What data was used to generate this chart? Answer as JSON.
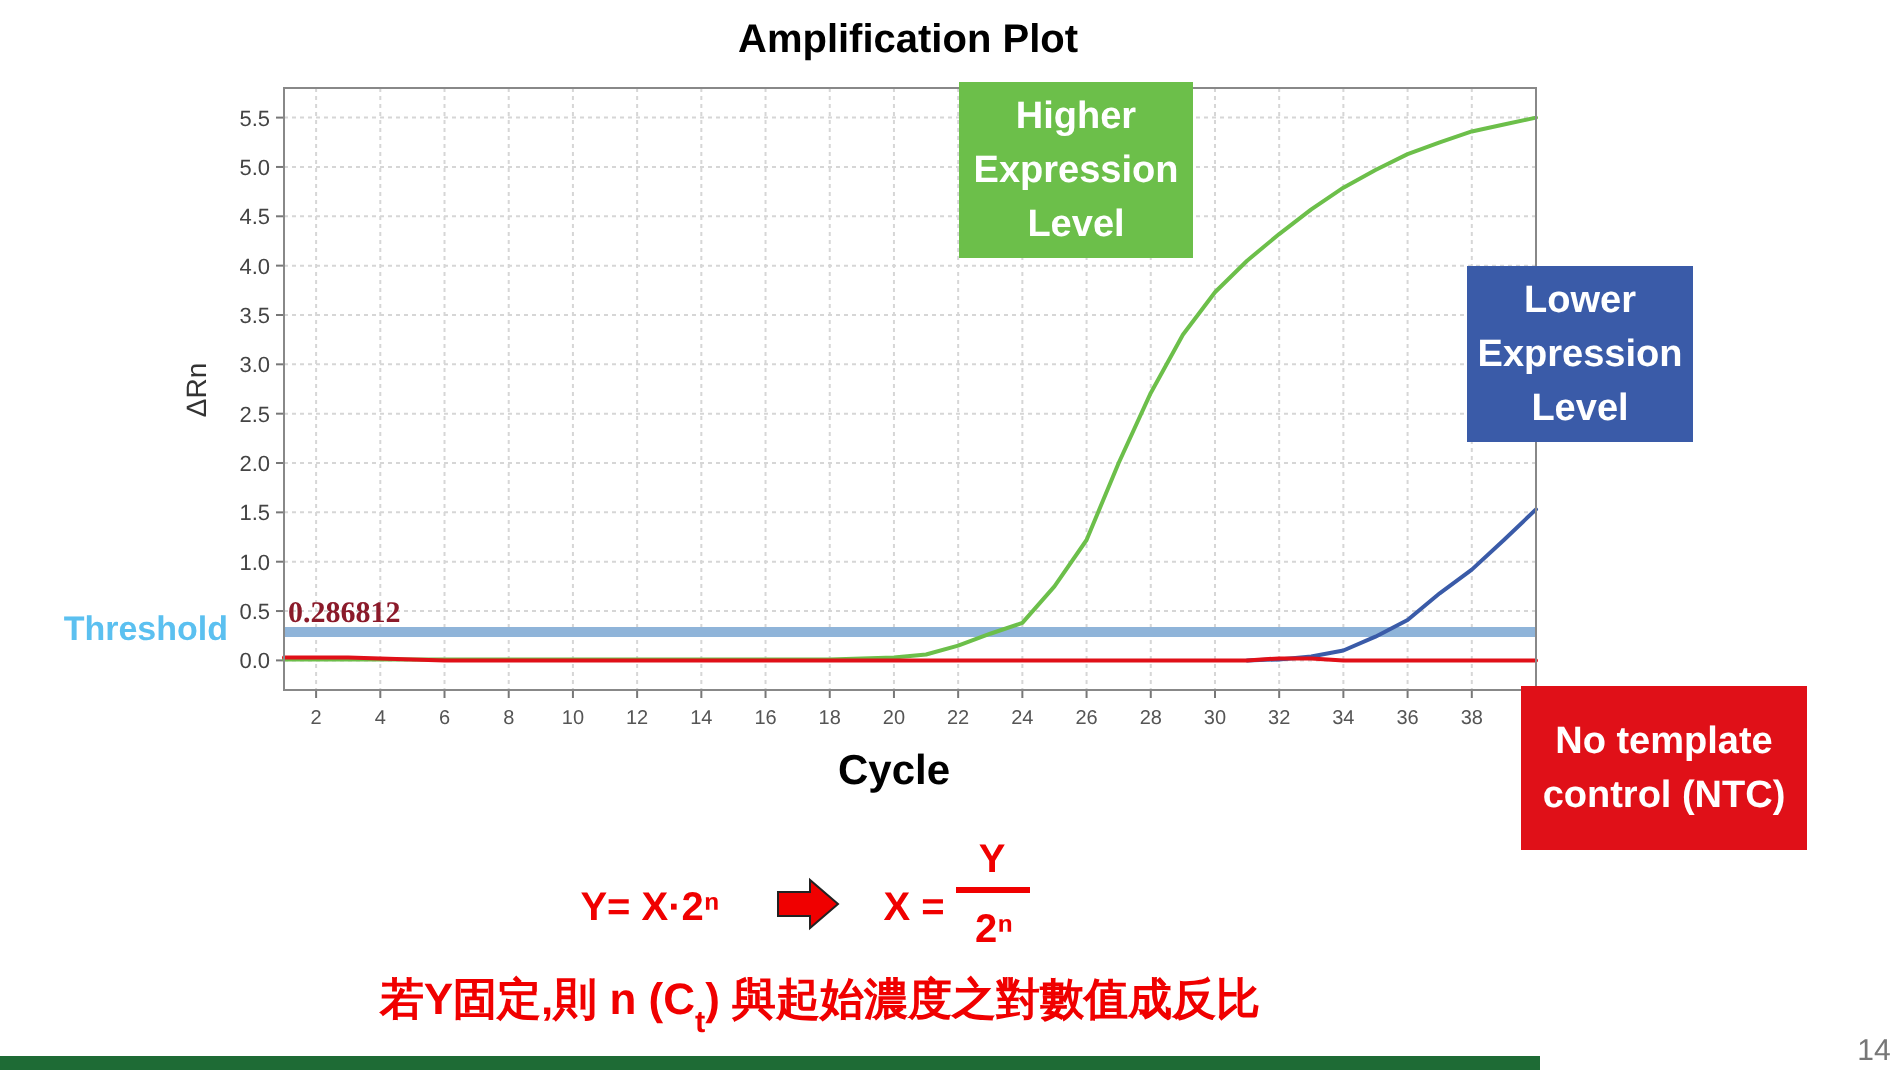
{
  "chart_data": {
    "type": "line",
    "title": "Amplification Plot",
    "xlabel": "Cycle",
    "ylabel": "ΔRn",
    "x": [
      1,
      3,
      6,
      10,
      14,
      18,
      19,
      20,
      21,
      22,
      23,
      24,
      25,
      26,
      27,
      28,
      29,
      30,
      31,
      32,
      33,
      34,
      35,
      36,
      37,
      38,
      39,
      40
    ],
    "series": [
      {
        "name": "Higher Expression Level",
        "color": "#6cbf4a",
        "values": [
          0.01,
          0.01,
          0.01,
          0.01,
          0.01,
          0.01,
          0.02,
          0.03,
          0.06,
          0.15,
          0.27,
          0.38,
          0.75,
          1.22,
          2.0,
          2.71,
          3.3,
          3.73,
          4.05,
          4.32,
          4.57,
          4.79,
          4.97,
          5.13,
          5.25,
          5.36,
          5.43,
          5.5
        ]
      },
      {
        "name": "Lower Expression Level",
        "color": "#3a5ba8",
        "values": [
          null,
          null,
          null,
          null,
          null,
          null,
          null,
          null,
          null,
          null,
          null,
          null,
          null,
          null,
          null,
          null,
          null,
          null,
          0.0,
          0.01,
          0.04,
          0.1,
          0.24,
          0.41,
          0.68,
          0.92,
          1.22,
          1.53
        ]
      },
      {
        "name": "No template control (NTC)",
        "color": "#e01018",
        "values": [
          0.03,
          0.03,
          0.0,
          0.0,
          0.0,
          0.0,
          0.0,
          0.0,
          0.0,
          0.0,
          0.0,
          0.0,
          0.0,
          0.0,
          0.0,
          0.0,
          0.0,
          0.0,
          0.0,
          0.02,
          0.02,
          0.0,
          0.0,
          0.0,
          0.0,
          0.0,
          0.0,
          0.0
        ]
      }
    ],
    "xlim": [
      1,
      40
    ],
    "ylim": [
      -0.3,
      5.8
    ],
    "xticks": [
      2,
      4,
      6,
      8,
      10,
      12,
      14,
      16,
      18,
      20,
      22,
      24,
      26,
      28,
      30,
      32,
      34,
      36,
      38
    ],
    "yticks": [
      {
        "value": 0,
        "label": "0.0"
      },
      {
        "value": 0.5,
        "label": "0.5"
      },
      {
        "value": 1,
        "label": "1.0"
      },
      {
        "value": 1.5,
        "label": "1.5"
      },
      {
        "value": 2,
        "label": "2.0"
      },
      {
        "value": 2.5,
        "label": "2.5"
      },
      {
        "value": 3,
        "label": "3.0"
      },
      {
        "value": 3.5,
        "label": "3.5"
      },
      {
        "value": 4,
        "label": "4.0"
      },
      {
        "value": 4.5,
        "label": "4.5"
      },
      {
        "value": 5,
        "label": "5.0"
      },
      {
        "value": 5.5,
        "label": "5.5"
      }
    ],
    "grid": true,
    "ref_lines": [
      {
        "axis": "y",
        "value": 0.286812,
        "label": "0.286812",
        "color": "#8fb4d9"
      }
    ],
    "annotations": [
      "Threshold",
      "Y= X·2ⁿ",
      "X =",
      "Y",
      "2ⁿ",
      "若Y固定,則 n (C$_{t}$) 與起始濃度之對數值成反比",
      "14"
    ]
  }
}
